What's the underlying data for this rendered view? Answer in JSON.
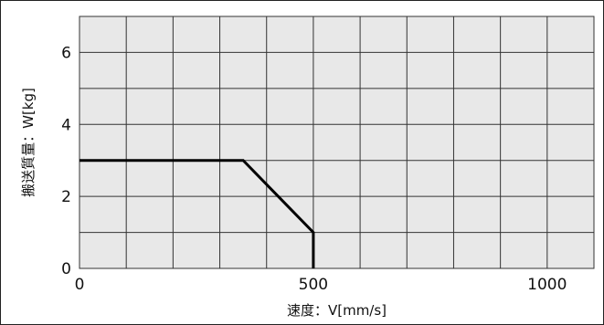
{
  "chart_data": {
    "type": "line",
    "title": "",
    "xlabel": "速度：V[mm/s]",
    "ylabel": "搬送質量：W[kg]",
    "xlim": [
      0,
      1100
    ],
    "ylim": [
      0,
      7
    ],
    "x_ticks": [
      0,
      500,
      1000
    ],
    "x_tick_labels": [
      "0",
      "500",
      "1000"
    ],
    "y_ticks": [
      0,
      2,
      4,
      6
    ],
    "y_tick_labels": [
      "0",
      "2",
      "4",
      "6"
    ],
    "x_grid_step": 100,
    "y_grid_step": 1,
    "grid": true,
    "legend": "none",
    "plot_background": "#e8e8e8",
    "grid_color": "#333333",
    "line_color": "#000000",
    "series": [
      {
        "x": [
          0,
          350,
          425,
          500,
          500
        ],
        "y": [
          3,
          3,
          2,
          1,
          0
        ]
      }
    ]
  }
}
